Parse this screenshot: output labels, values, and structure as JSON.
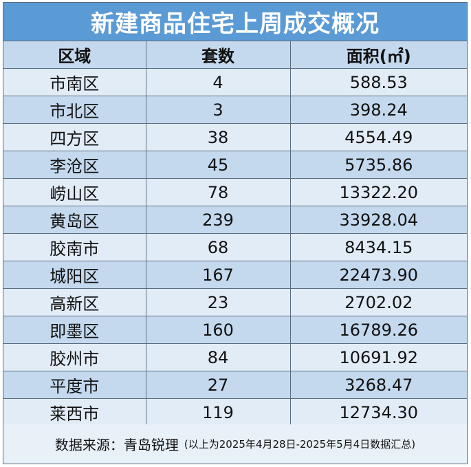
{
  "title": "新建商品住宅上周成交概况",
  "headers": [
    "区域",
    "套数",
    "面积(㎡)"
  ],
  "rows": [
    {
      "district": "市南区",
      "units": "4",
      "area": "588.53"
    },
    {
      "district": "市北区",
      "units": "3",
      "area": "398.24"
    },
    {
      "district": "四方区",
      "units": "38",
      "area": "4554.49"
    },
    {
      "district": "李沧区",
      "units": "45",
      "area": "5735.86"
    },
    {
      "district": "崂山区",
      "units": "78",
      "area": "13322.20"
    },
    {
      "district": "黄岛区",
      "units": "239",
      "area": "33928.04"
    },
    {
      "district": "胶南市",
      "units": "68",
      "area": "8434.15"
    },
    {
      "district": "城阳区",
      "units": "167",
      "area": "22473.90"
    },
    {
      "district": "高新区",
      "units": "23",
      "area": "2702.02"
    },
    {
      "district": "即墨区",
      "units": "160",
      "area": "16789.26"
    },
    {
      "district": "胶州市",
      "units": "84",
      "area": "10691.92"
    },
    {
      "district": "平度市",
      "units": "27",
      "area": "3268.47"
    },
    {
      "district": "莱西市",
      "units": "119",
      "area": "12734.30"
    }
  ],
  "footer": {
    "source_label": "数据来源：",
    "source_name": "青岛锐理",
    "note": "(以上为2025年4月28日-2025年5月4日数据汇总)"
  },
  "colors": {
    "title_bg": "#5b9bd5",
    "row_light": "#e1ecf7",
    "row_dark": "#c4d9ee",
    "border": "#5a6c80"
  }
}
